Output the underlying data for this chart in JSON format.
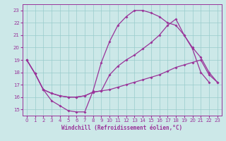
{
  "title": "",
  "xlabel": "Windchill (Refroidissement éolien,°C)",
  "bg_color": "#cce8e8",
  "line_color": "#993399",
  "grid_color": "#99cccc",
  "xlim": [
    -0.5,
    23.5
  ],
  "ylim": [
    14.5,
    23.5
  ],
  "yticks": [
    15,
    16,
    17,
    18,
    19,
    20,
    21,
    22,
    23
  ],
  "xticks": [
    0,
    1,
    2,
    3,
    4,
    5,
    6,
    7,
    8,
    9,
    10,
    11,
    12,
    13,
    14,
    15,
    16,
    17,
    18,
    19,
    20,
    21,
    22,
    23
  ],
  "series": [
    [
      19.0,
      17.9,
      16.6,
      15.7,
      15.3,
      14.9,
      14.8,
      14.8,
      16.5,
      18.8,
      20.5,
      21.8,
      22.5,
      23.0,
      23.0,
      22.8,
      22.5,
      22.0,
      21.8,
      21.0,
      19.9,
      18.0,
      17.2,
      null
    ],
    [
      19.0,
      17.9,
      16.6,
      16.3,
      16.1,
      16.0,
      16.0,
      16.1,
      16.4,
      16.5,
      16.6,
      16.8,
      17.0,
      17.2,
      17.4,
      17.6,
      17.8,
      18.1,
      18.4,
      18.6,
      18.8,
      19.0,
      17.8,
      17.2
    ],
    [
      19.0,
      17.9,
      16.6,
      16.3,
      16.1,
      16.0,
      16.0,
      16.1,
      16.4,
      16.5,
      17.8,
      18.5,
      19.0,
      19.4,
      19.9,
      20.4,
      21.0,
      21.8,
      22.3,
      21.0,
      20.0,
      19.2,
      18.0,
      17.2
    ]
  ]
}
